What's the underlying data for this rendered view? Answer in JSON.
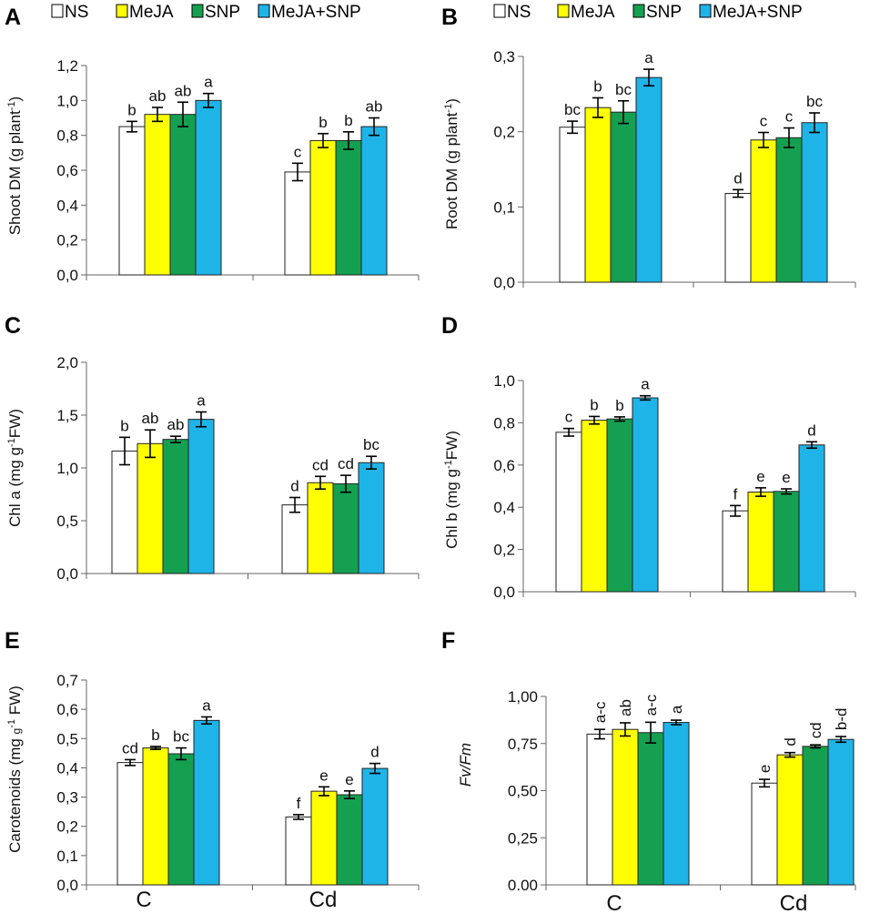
{
  "figure": {
    "legend": [
      {
        "name": "NS",
        "color": "#ffffff"
      },
      {
        "name": "MeJA",
        "color": "#ffff00"
      },
      {
        "name": "SNP",
        "color": "#14a050"
      },
      {
        "name": "MeJA+SNP",
        "color": "#1eb4e8"
      }
    ],
    "categories": [
      "C",
      "Cd"
    ]
  },
  "chart_data": [
    {
      "panel": "A",
      "type": "bar",
      "ylabel": "Shoot DM (g plant-1)",
      "ylim": [
        0,
        1.2
      ],
      "ytick_labels": [
        "0,0",
        "0,2",
        "0,4",
        "0,6",
        "0,8",
        "1,0",
        "1,2"
      ],
      "categories": [
        "C",
        "Cd"
      ],
      "series": [
        {
          "name": "NS",
          "values": [
            0.85,
            0.59
          ],
          "errors": [
            0.03,
            0.05
          ],
          "letters": [
            "b",
            "c"
          ]
        },
        {
          "name": "MeJA",
          "values": [
            0.92,
            0.77
          ],
          "errors": [
            0.04,
            0.04
          ],
          "letters": [
            "ab",
            "b"
          ]
        },
        {
          "name": "SNP",
          "values": [
            0.92,
            0.77
          ],
          "errors": [
            0.07,
            0.05
          ],
          "letters": [
            "ab",
            "b"
          ]
        },
        {
          "name": "MeJA+SNP",
          "values": [
            1.0,
            0.85
          ],
          "errors": [
            0.04,
            0.05
          ],
          "letters": [
            "a",
            "ab"
          ]
        }
      ]
    },
    {
      "panel": "B",
      "type": "bar",
      "ylabel": "Root DM (g plant-1)",
      "ylim": [
        0,
        0.3
      ],
      "ytick_labels": [
        "0,0",
        "0,1",
        "0,2",
        "0,3"
      ],
      "categories": [
        "C",
        "Cd"
      ],
      "series": [
        {
          "name": "NS",
          "values": [
            0.206,
            0.118
          ],
          "errors": [
            0.008,
            0.005
          ],
          "letters": [
            "bc",
            "d"
          ]
        },
        {
          "name": "MeJA",
          "values": [
            0.232,
            0.189
          ],
          "errors": [
            0.013,
            0.01
          ],
          "letters": [
            "b",
            "c"
          ]
        },
        {
          "name": "SNP",
          "values": [
            0.226,
            0.192
          ],
          "errors": [
            0.015,
            0.013
          ],
          "letters": [
            "bc",
            "c"
          ]
        },
        {
          "name": "MeJA+SNP",
          "values": [
            0.272,
            0.212
          ],
          "errors": [
            0.011,
            0.013
          ],
          "letters": [
            "a",
            "bc"
          ]
        }
      ]
    },
    {
      "panel": "C",
      "type": "bar",
      "ylabel": "Chl a (mg g-1FW)",
      "ylim": [
        0,
        2.0
      ],
      "ytick_labels": [
        "0,0",
        "0,5",
        "1,0",
        "1,5",
        "2,0"
      ],
      "categories": [
        "C",
        "Cd"
      ],
      "series": [
        {
          "name": "NS",
          "values": [
            1.16,
            0.65
          ],
          "errors": [
            0.13,
            0.07
          ],
          "letters": [
            "b",
            "d"
          ]
        },
        {
          "name": "MeJA",
          "values": [
            1.23,
            0.86
          ],
          "errors": [
            0.13,
            0.06
          ],
          "letters": [
            "ab",
            "cd"
          ]
        },
        {
          "name": "SNP",
          "values": [
            1.27,
            0.85
          ],
          "errors": [
            0.03,
            0.08
          ],
          "letters": [
            "ab",
            "cd"
          ]
        },
        {
          "name": "MeJA+SNP",
          "values": [
            1.46,
            1.05
          ],
          "errors": [
            0.07,
            0.06
          ],
          "letters": [
            "a",
            "bc"
          ]
        }
      ]
    },
    {
      "panel": "D",
      "type": "bar",
      "ylabel": "Chl b (mg g-1FW)",
      "ylim": [
        0,
        1.0
      ],
      "ytick_labels": [
        "0,0",
        "0,2",
        "0,4",
        "0,6",
        "0,8",
        "1,0"
      ],
      "categories": [
        "C",
        "Cd"
      ],
      "series": [
        {
          "name": "NS",
          "values": [
            0.755,
            0.383
          ],
          "errors": [
            0.018,
            0.025
          ],
          "letters": [
            "c",
            "f"
          ]
        },
        {
          "name": "MeJA",
          "values": [
            0.812,
            0.472
          ],
          "errors": [
            0.018,
            0.02
          ],
          "letters": [
            "b",
            "e"
          ]
        },
        {
          "name": "SNP",
          "values": [
            0.818,
            0.475
          ],
          "errors": [
            0.01,
            0.012
          ],
          "letters": [
            "b",
            "e"
          ]
        },
        {
          "name": "MeJA+SNP",
          "values": [
            0.918,
            0.695
          ],
          "errors": [
            0.01,
            0.015
          ],
          "letters": [
            "a",
            "d"
          ]
        }
      ]
    },
    {
      "panel": "E",
      "type": "bar",
      "ylabel": "Carotenoids (mg g-1 FW)",
      "ylim": [
        0,
        0.7
      ],
      "ytick_labels": [
        "0,0",
        "0,1",
        "0,2",
        "0,3",
        "0,4",
        "0,5",
        "0,6",
        "0,7"
      ],
      "categories": [
        "C",
        "Cd"
      ],
      "series": [
        {
          "name": "NS",
          "values": [
            0.418,
            0.232
          ],
          "errors": [
            0.01,
            0.008
          ],
          "letters": [
            "cd",
            "f"
          ]
        },
        {
          "name": "MeJA",
          "values": [
            0.468,
            0.32
          ],
          "errors": [
            0.005,
            0.015
          ],
          "letters": [
            "b",
            "e"
          ]
        },
        {
          "name": "SNP",
          "values": [
            0.448,
            0.308
          ],
          "errors": [
            0.02,
            0.013
          ],
          "letters": [
            "bc",
            "e"
          ]
        },
        {
          "name": "MeJA+SNP",
          "values": [
            0.562,
            0.398
          ],
          "errors": [
            0.012,
            0.017
          ],
          "letters": [
            "a",
            "d"
          ]
        }
      ]
    },
    {
      "panel": "F",
      "type": "bar",
      "ylabel": "Fv/Fm",
      "ylim": [
        0,
        1.0
      ],
      "ytick_labels": [
        "0.00",
        "0,25",
        "0,50",
        "0,75",
        "1,00"
      ],
      "categories": [
        "C",
        "Cd"
      ],
      "series": [
        {
          "name": "NS",
          "values": [
            0.8,
            0.54
          ],
          "errors": [
            0.025,
            0.02
          ],
          "letters": [
            "a-c",
            "e"
          ]
        },
        {
          "name": "MeJA",
          "values": [
            0.825,
            0.69
          ],
          "errors": [
            0.035,
            0.012
          ],
          "letters": [
            "ab",
            "d"
          ]
        },
        {
          "name": "SNP",
          "values": [
            0.808,
            0.735
          ],
          "errors": [
            0.055,
            0.008
          ],
          "letters": [
            "a-c",
            "cd"
          ]
        },
        {
          "name": "MeJA+SNP",
          "values": [
            0.862,
            0.772
          ],
          "errors": [
            0.012,
            0.015
          ],
          "letters": [
            "a",
            "b-d"
          ]
        }
      ]
    }
  ]
}
